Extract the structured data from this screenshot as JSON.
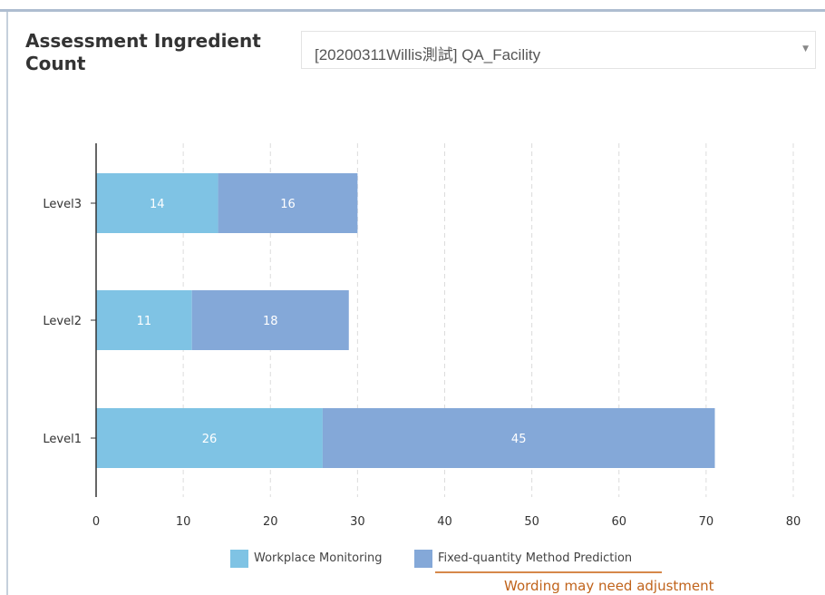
{
  "panel": {
    "title": "Assessment Ingredient Count",
    "selected_assessment": "[20200311Willis測試] QA_Facility"
  },
  "icons": {
    "dropdown": "caret-down-icon"
  },
  "chart_data": {
    "type": "bar",
    "orientation": "horizontal",
    "stacked": true,
    "categories": [
      "Level3",
      "Level2",
      "Level1"
    ],
    "series": [
      {
        "name": "Workplace Monitoring",
        "values": [
          14,
          11,
          26
        ],
        "color": "#7fc3e4"
      },
      {
        "name": "Fixed-quantity Method Prediction",
        "values": [
          16,
          18,
          45
        ],
        "color": "#84a8d8"
      }
    ],
    "xlim": [
      0,
      80
    ],
    "xticks": [
      0,
      10,
      20,
      30,
      40,
      50,
      60,
      70,
      80
    ],
    "grid": "vertical-dashed",
    "legend_position": "bottom"
  },
  "annotation": {
    "note": "Wording may need adjustment",
    "color": "#c0631b"
  }
}
